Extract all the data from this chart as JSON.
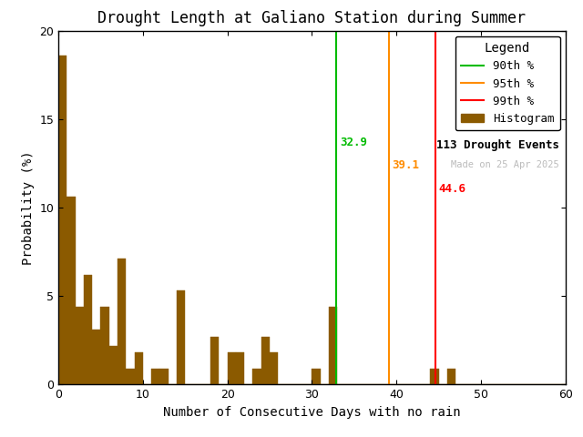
{
  "title": "Drought Length at Galiano Station during Summer",
  "xlabel": "Number of Consecutive Days with no rain",
  "ylabel": "Probability (%)",
  "bar_color": "#8B5A00",
  "bar_edgecolor": "#8B5A00",
  "xlim": [
    0,
    60
  ],
  "ylim": [
    0,
    20
  ],
  "xticks": [
    0,
    10,
    20,
    30,
    40,
    50,
    60
  ],
  "yticks": [
    0,
    5,
    10,
    15,
    20
  ],
  "bin_width": 1,
  "percentile_90": 32.9,
  "percentile_95": 39.1,
  "percentile_99": 44.6,
  "percentile_90_color": "#00BB00",
  "percentile_95_color": "#FF8C00",
  "percentile_99_color": "#FF0000",
  "n_events": 113,
  "date_label": "Made on 25 Apr 2025",
  "date_label_color": "#BBBBBB",
  "background_color": "#FFFFFF",
  "bar_heights": [
    18.6,
    10.6,
    4.4,
    6.2,
    3.1,
    4.4,
    2.2,
    7.1,
    0.9,
    1.8,
    0.0,
    0.9,
    0.9,
    0.0,
    5.3,
    0.0,
    0.0,
    0.0,
    2.7,
    0.0,
    1.8,
    1.8,
    0.0,
    0.9,
    2.7,
    1.8,
    0.0,
    0.0,
    0.0,
    0.0,
    0.9,
    0.0,
    4.4,
    0.0,
    0.0,
    0.0,
    0.0,
    0.0,
    0.0,
    0.0,
    0.0,
    0.0,
    0.0,
    0.0,
    0.9,
    0.0,
    0.9,
    0.0,
    0.0,
    0.0,
    0.0,
    0.0,
    0.0,
    0.0,
    0.0,
    0.0,
    0.0,
    0.0,
    0.0,
    0.0
  ],
  "font_family": "monospace",
  "figsize": [
    6.4,
    4.8
  ],
  "dpi": 100
}
